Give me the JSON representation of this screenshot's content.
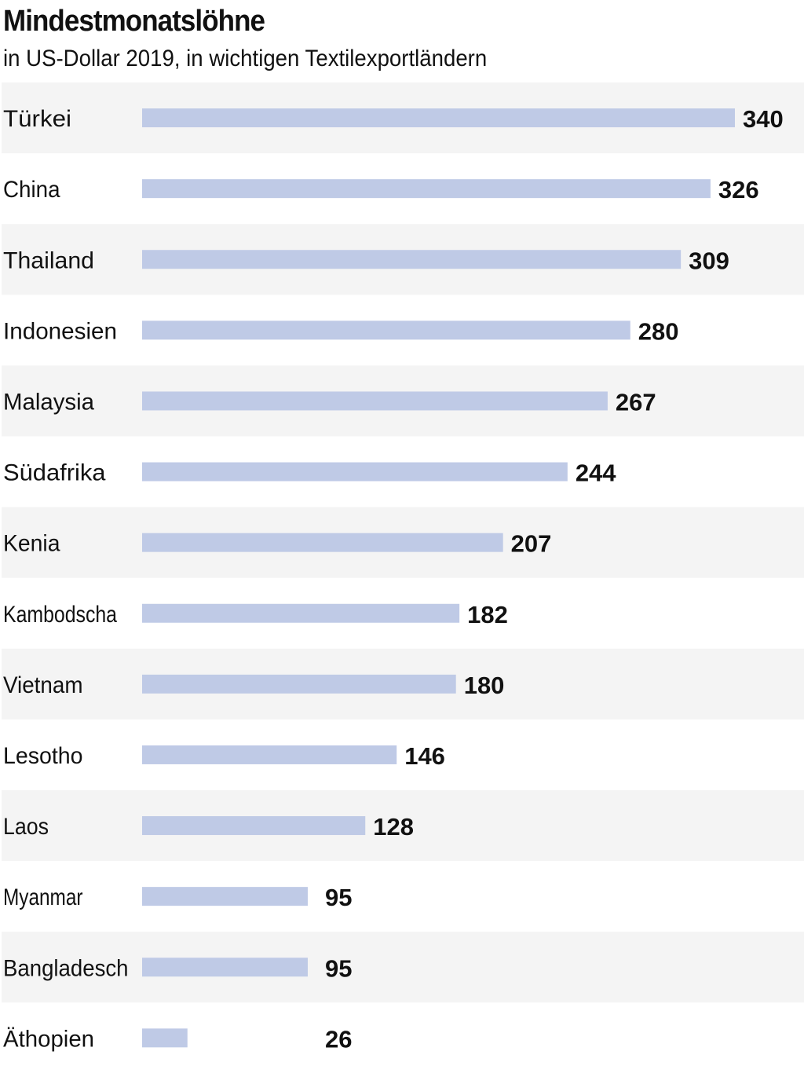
{
  "header": {
    "title": "Mindestmonatslöhne",
    "subtitle": "in US-Dollar 2019, in wichtigen Textilexportländern"
  },
  "colors": {
    "bar": "#bfcae6",
    "row_stripe": "#f4f4f4",
    "background": "#ffffff",
    "text": "#111111"
  },
  "chart_data": {
    "type": "bar",
    "orientation": "horizontal",
    "title": "Mindestmonatslöhne",
    "subtitle": "in US-Dollar 2019, in wichtigen Textilexportländern",
    "categories": [
      "Türkei",
      "China",
      "Thailand",
      "Indonesien",
      "Malaysia",
      "Südafrika",
      "Kenia",
      "Kambodscha",
      "Vietnam",
      "Lesotho",
      "Laos",
      "Myanmar",
      "Bangladesch",
      "Äthopien"
    ],
    "values": [
      340,
      326,
      309,
      280,
      267,
      244,
      207,
      182,
      180,
      146,
      128,
      95,
      95,
      26
    ],
    "data_labels": [
      "340",
      "326",
      "309",
      "280",
      "267",
      "244",
      "207",
      "182",
      "180",
      "146",
      "128",
      "95",
      "95",
      "26"
    ],
    "xlim": [
      0,
      340
    ],
    "grid": false,
    "legend": "none"
  }
}
